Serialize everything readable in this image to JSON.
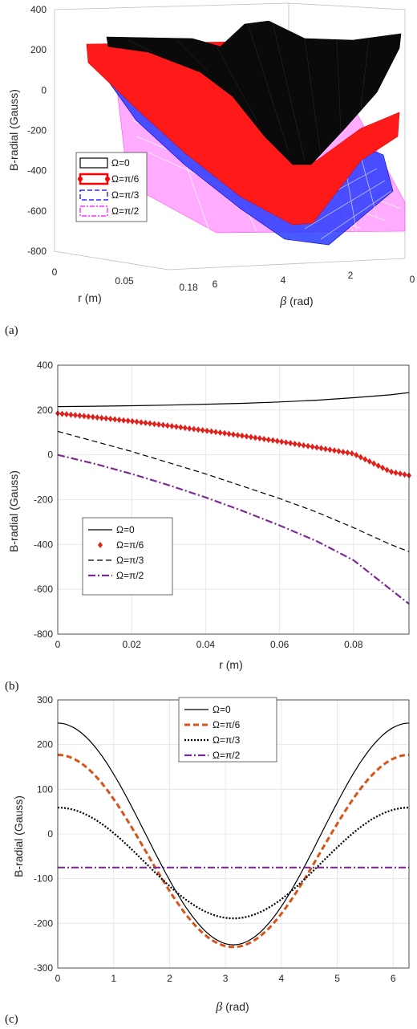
{
  "panels": {
    "a": "(a)",
    "b": "(b)",
    "c": "(c)"
  },
  "chart_data": [
    {
      "id": "a",
      "type": "surface3d",
      "ylabel": "B-radial (Gauss)",
      "xlabel": "r (m)",
      "blabel_symbol": "β",
      "blabel_unit": " (rad)",
      "z_ticks": [
        "400",
        "200",
        "0",
        "-200",
        "-400",
        "-600",
        "-800"
      ],
      "r_ticks": [
        "0",
        "0.05",
        "0.18"
      ],
      "beta_ticks": [
        "6",
        "4",
        "2",
        "0"
      ],
      "legend": [
        "Ω=0",
        "Ω=π/6",
        "Ω=π/3",
        "Ω=π/2"
      ],
      "series_colors": [
        "#000000",
        "#ff0000",
        "#0000ff",
        "#ff00ff"
      ]
    },
    {
      "id": "b",
      "type": "line",
      "xlabel": "r (m)",
      "ylabel": "B-radial (Gauss)",
      "xlim": [
        0,
        0.095
      ],
      "ylim": [
        -800,
        400
      ],
      "x_ticks": [
        0,
        0.02,
        0.04,
        0.06,
        0.08
      ],
      "x_tick_labels": [
        "0",
        "0.02",
        "0.04",
        "0.06",
        "0.08"
      ],
      "y_ticks": [
        400,
        200,
        0,
        -200,
        -400,
        -600,
        -800
      ],
      "y_tick_labels": [
        "400",
        "200",
        "0",
        "-200",
        "-400",
        "-600",
        "-800"
      ],
      "grid": true,
      "legend_position": "lower-left",
      "x": [
        0,
        0.01,
        0.02,
        0.03,
        0.04,
        0.05,
        0.06,
        0.07,
        0.08,
        0.09,
        0.095
      ],
      "series": [
        {
          "name": "Ω=0",
          "color": "#000000",
          "style": "solid",
          "values": [
            215,
            217,
            219,
            222,
            226,
            230,
            236,
            244,
            255,
            268,
            278
          ]
        },
        {
          "name": "Ω=π/6",
          "color": "#e0201b",
          "style": "diamond",
          "values": [
            185,
            168,
            150,
            130,
            108,
            85,
            60,
            33,
            5,
            -75,
            -92
          ]
        },
        {
          "name": "Ω=π/3",
          "color": "#000000",
          "style": "dashed",
          "values": [
            105,
            60,
            15,
            -35,
            -85,
            -140,
            -195,
            -255,
            -325,
            -400,
            -432
          ]
        },
        {
          "name": "Ω=π/2",
          "color": "#7b2c94",
          "style": "dashdot",
          "values": [
            0,
            -40,
            -85,
            -135,
            -190,
            -250,
            -315,
            -385,
            -470,
            -600,
            -665
          ]
        }
      ]
    },
    {
      "id": "c",
      "type": "line",
      "xlabel_symbol": "β",
      "xlabel_unit": " (rad)",
      "ylabel": "B-radial (Gauss)",
      "xlim": [
        0,
        6.283
      ],
      "ylim": [
        -300,
        300
      ],
      "x_ticks": [
        0,
        1,
        2,
        3,
        4,
        5,
        6
      ],
      "x_tick_labels": [
        "0",
        "1",
        "2",
        "3",
        "4",
        "5",
        "6"
      ],
      "y_ticks": [
        300,
        200,
        100,
        0,
        -100,
        -200,
        -300
      ],
      "y_tick_labels": [
        "300",
        "200",
        "100",
        "0",
        "-100",
        "-200",
        "-300"
      ],
      "grid": true,
      "legend_position": "top-center",
      "series": [
        {
          "name": "Ω=0",
          "color": "#000000",
          "style": "solid",
          "amplitude": 248,
          "offset": 0
        },
        {
          "name": "Ω=π/6",
          "color": "#d95319",
          "style": "dashed",
          "amplitude": 215,
          "offset": -38
        },
        {
          "name": "Ω=π/3",
          "color": "#000000",
          "style": "dotted",
          "amplitude": 124,
          "offset": -65
        },
        {
          "name": "Ω=π/2",
          "color": "#7b2c94",
          "style": "dashdot",
          "amplitude": 0,
          "offset": -75
        }
      ]
    }
  ]
}
